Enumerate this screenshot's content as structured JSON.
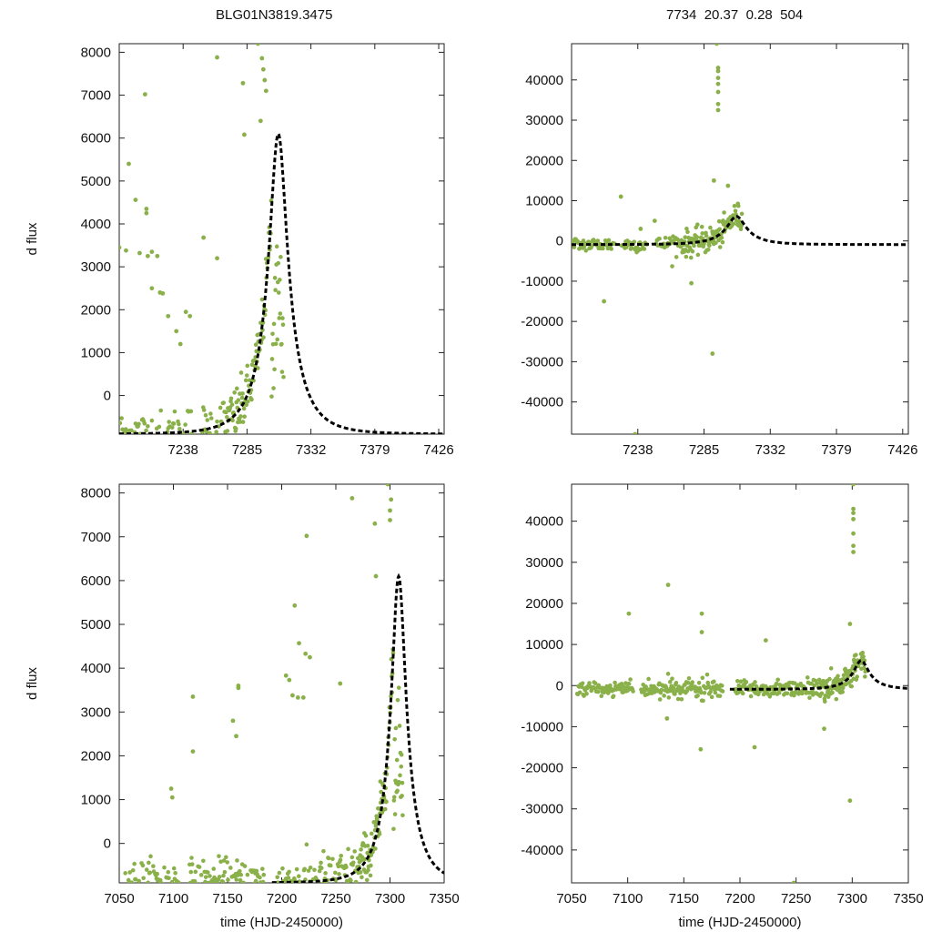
{
  "header": {
    "left_title": "BLG01N3819.3475",
    "right_title": "7734  20.37  0.28  504"
  },
  "colors": {
    "data_points": "#8ab04a",
    "model_curve": "#000000",
    "axis": "#222222"
  },
  "model": {
    "t0": 7308,
    "tE": 24,
    "u0": 0.28,
    "baseline": -900,
    "peak": 6100
  },
  "chart_data": [
    {
      "id": "top-left",
      "type": "scatter",
      "title": "",
      "xlabel": "",
      "ylabel": "d flux",
      "xlim": [
        7191,
        7430
      ],
      "ylim": [
        -900,
        8200
      ],
      "xticks": [
        7238,
        7285,
        7332,
        7379,
        7426
      ],
      "yticks": [
        0,
        1000,
        2000,
        3000,
        4000,
        5000,
        6000,
        7000,
        8000
      ],
      "series": [
        {
          "name": "observations",
          "kind": "points",
          "t_range": [
            7191,
            7312
          ]
        },
        {
          "name": "model",
          "kind": "curve",
          "style": "dashed",
          "t_range": [
            7191,
            7430
          ]
        }
      ],
      "highlight_points": [
        [
          7191,
          3450
        ],
        [
          7196,
          3380
        ],
        [
          7198,
          5400
        ],
        [
          7203,
          4560
        ],
        [
          7206,
          3320
        ],
        [
          7211,
          4350
        ],
        [
          7211,
          4250
        ],
        [
          7212,
          3250
        ],
        [
          7215,
          3350
        ],
        [
          7219,
          3250
        ],
        [
          7221,
          2400
        ],
        [
          7223,
          2380
        ],
        [
          7215,
          2500
        ],
        [
          7227,
          1850
        ],
        [
          7233,
          1500
        ],
        [
          7236,
          1200
        ],
        [
          7240,
          1950
        ],
        [
          7243,
          1850
        ],
        [
          7253,
          3680
        ],
        [
          7263,
          3200
        ],
        [
          7263,
          7880
        ],
        [
          7282,
          7280
        ],
        [
          7283,
          6080
        ],
        [
          7295,
          6400
        ],
        [
          7293,
          8200
        ],
        [
          7296,
          7860
        ],
        [
          7297,
          7600
        ],
        [
          7298,
          7350
        ],
        [
          7299,
          7100
        ],
        [
          7210,
          7020
        ]
      ]
    },
    {
      "id": "top-right",
      "type": "scatter",
      "title": "",
      "xlabel": "",
      "ylabel": "",
      "xlim": [
        7191,
        7430
      ],
      "ylim": [
        -48000,
        49000
      ],
      "xticks": [
        7238,
        7285,
        7332,
        7379,
        7426
      ],
      "yticks": [
        -40000,
        -30000,
        -20000,
        -10000,
        0,
        10000,
        20000,
        30000,
        40000
      ],
      "series": [
        {
          "name": "observations",
          "kind": "points",
          "t_range": [
            7191,
            7312
          ]
        },
        {
          "name": "model",
          "kind": "curve",
          "style": "dashed",
          "t_range": [
            7191,
            7430
          ]
        }
      ],
      "highlight_points": [
        [
          7294,
          49000
        ],
        [
          7295,
          43000
        ],
        [
          7295,
          42200
        ],
        [
          7295,
          40500
        ],
        [
          7295,
          39000
        ],
        [
          7295,
          37000
        ],
        [
          7295,
          34000
        ],
        [
          7295,
          32500
        ],
        [
          7292,
          15000
        ],
        [
          7302,
          13700
        ],
        [
          7291,
          -28000
        ],
        [
          7236,
          -48000
        ],
        [
          7226,
          11000
        ],
        [
          7214,
          -15000
        ],
        [
          7276,
          -10500
        ],
        [
          7250,
          5000
        ],
        [
          7240,
          3000
        ]
      ]
    },
    {
      "id": "bottom-left",
      "type": "scatter",
      "title": "",
      "xlabel": "time (HJD-2450000)",
      "ylabel": "d flux",
      "xlim": [
        7050,
        7350
      ],
      "ylim": [
        -900,
        8200
      ],
      "xticks": [
        7050,
        7100,
        7150,
        7200,
        7250,
        7300,
        7350
      ],
      "yticks": [
        0,
        1000,
        2000,
        3000,
        4000,
        5000,
        6000,
        7000,
        8000
      ],
      "series": [
        {
          "name": "observations",
          "kind": "points",
          "t_range": [
            7055,
            7312
          ]
        },
        {
          "name": "model",
          "kind": "curve",
          "style": "dashed",
          "t_range": [
            7191,
            7350
          ]
        }
      ],
      "highlight_points": [
        [
          7118,
          3350
        ],
        [
          7118,
          2100
        ],
        [
          7098,
          1250
        ],
        [
          7099,
          1050
        ],
        [
          7160,
          3550
        ],
        [
          7160,
          3600
        ],
        [
          7155,
          2800
        ],
        [
          7158,
          2450
        ],
        [
          7204,
          3830
        ],
        [
          7207,
          3730
        ],
        [
          7212,
          5430
        ],
        [
          7216,
          4570
        ],
        [
          7220,
          3330
        ],
        [
          7222,
          4330
        ],
        [
          7223,
          7020
        ],
        [
          7254,
          3650
        ],
        [
          7265,
          7880
        ],
        [
          7286,
          7300
        ],
        [
          7287,
          6100
        ],
        [
          7298,
          8200
        ],
        [
          7301,
          7850
        ],
        [
          7300,
          7600
        ],
        [
          7300,
          7380
        ],
        [
          7210,
          3380
        ],
        [
          7215,
          3330
        ],
        [
          7226,
          4250
        ]
      ]
    },
    {
      "id": "bottom-right",
      "type": "scatter",
      "title": "",
      "xlabel": "time (HJD-2450000)",
      "ylabel": "",
      "xlim": [
        7050,
        7350
      ],
      "ylim": [
        -48000,
        49000
      ],
      "xticks": [
        7050,
        7100,
        7150,
        7200,
        7250,
        7300,
        7350
      ],
      "yticks": [
        -40000,
        -30000,
        -20000,
        -10000,
        0,
        10000,
        20000,
        30000,
        40000
      ],
      "series": [
        {
          "name": "observations",
          "kind": "points",
          "t_range": [
            7055,
            7312
          ]
        },
        {
          "name": "model",
          "kind": "curve",
          "style": "dashed",
          "t_range": [
            7191,
            7350
          ]
        }
      ],
      "highlight_points": [
        [
          7301,
          49000
        ],
        [
          7301,
          43000
        ],
        [
          7301,
          42000
        ],
        [
          7301,
          40500
        ],
        [
          7301,
          37000
        ],
        [
          7301,
          34000
        ],
        [
          7301,
          32500
        ],
        [
          7136,
          24500
        ],
        [
          7101,
          17500
        ],
        [
          7166,
          17500
        ],
        [
          7166,
          13000
        ],
        [
          7223,
          11000
        ],
        [
          7298,
          15000
        ],
        [
          7298,
          -28000
        ],
        [
          7248,
          -48000
        ],
        [
          7213,
          -15000
        ],
        [
          7165,
          -15500
        ],
        [
          7275,
          -10500
        ],
        [
          7135,
          -8000
        ]
      ]
    }
  ]
}
